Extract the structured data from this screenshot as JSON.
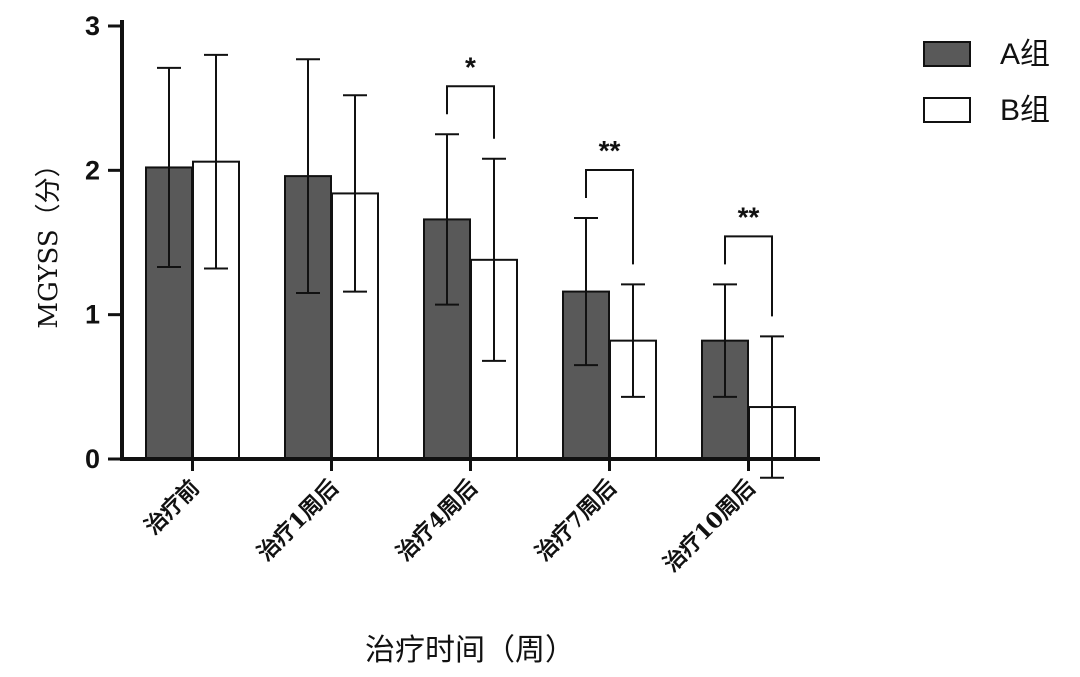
{
  "chart_data": {
    "type": "bar",
    "title": "",
    "xlabel": "治疗时间（周）",
    "ylabel": "MGYSS（分）",
    "ylim": [
      0,
      3
    ],
    "yticks": [
      0,
      1,
      2,
      3
    ],
    "categories": [
      "治疗前",
      "治疗1周后",
      "治疗4周后",
      "治疗7周后",
      "治疗10周后"
    ],
    "series": [
      {
        "name": "A组",
        "color": "#595959",
        "values": [
          2.02,
          1.96,
          1.66,
          1.16,
          0.82
        ],
        "errors": [
          0.69,
          0.81,
          0.59,
          0.51,
          0.39
        ]
      },
      {
        "name": "B组",
        "color": "#ffffff",
        "values": [
          2.06,
          1.84,
          1.38,
          0.82,
          0.36
        ],
        "errors": [
          0.74,
          0.68,
          0.7,
          0.39,
          0.49
        ]
      }
    ],
    "significance": [
      {
        "category_index": 2,
        "label": "*"
      },
      {
        "category_index": 3,
        "label": "**"
      },
      {
        "category_index": 4,
        "label": "**"
      }
    ],
    "legend_position": "top-right",
    "grid": false
  }
}
